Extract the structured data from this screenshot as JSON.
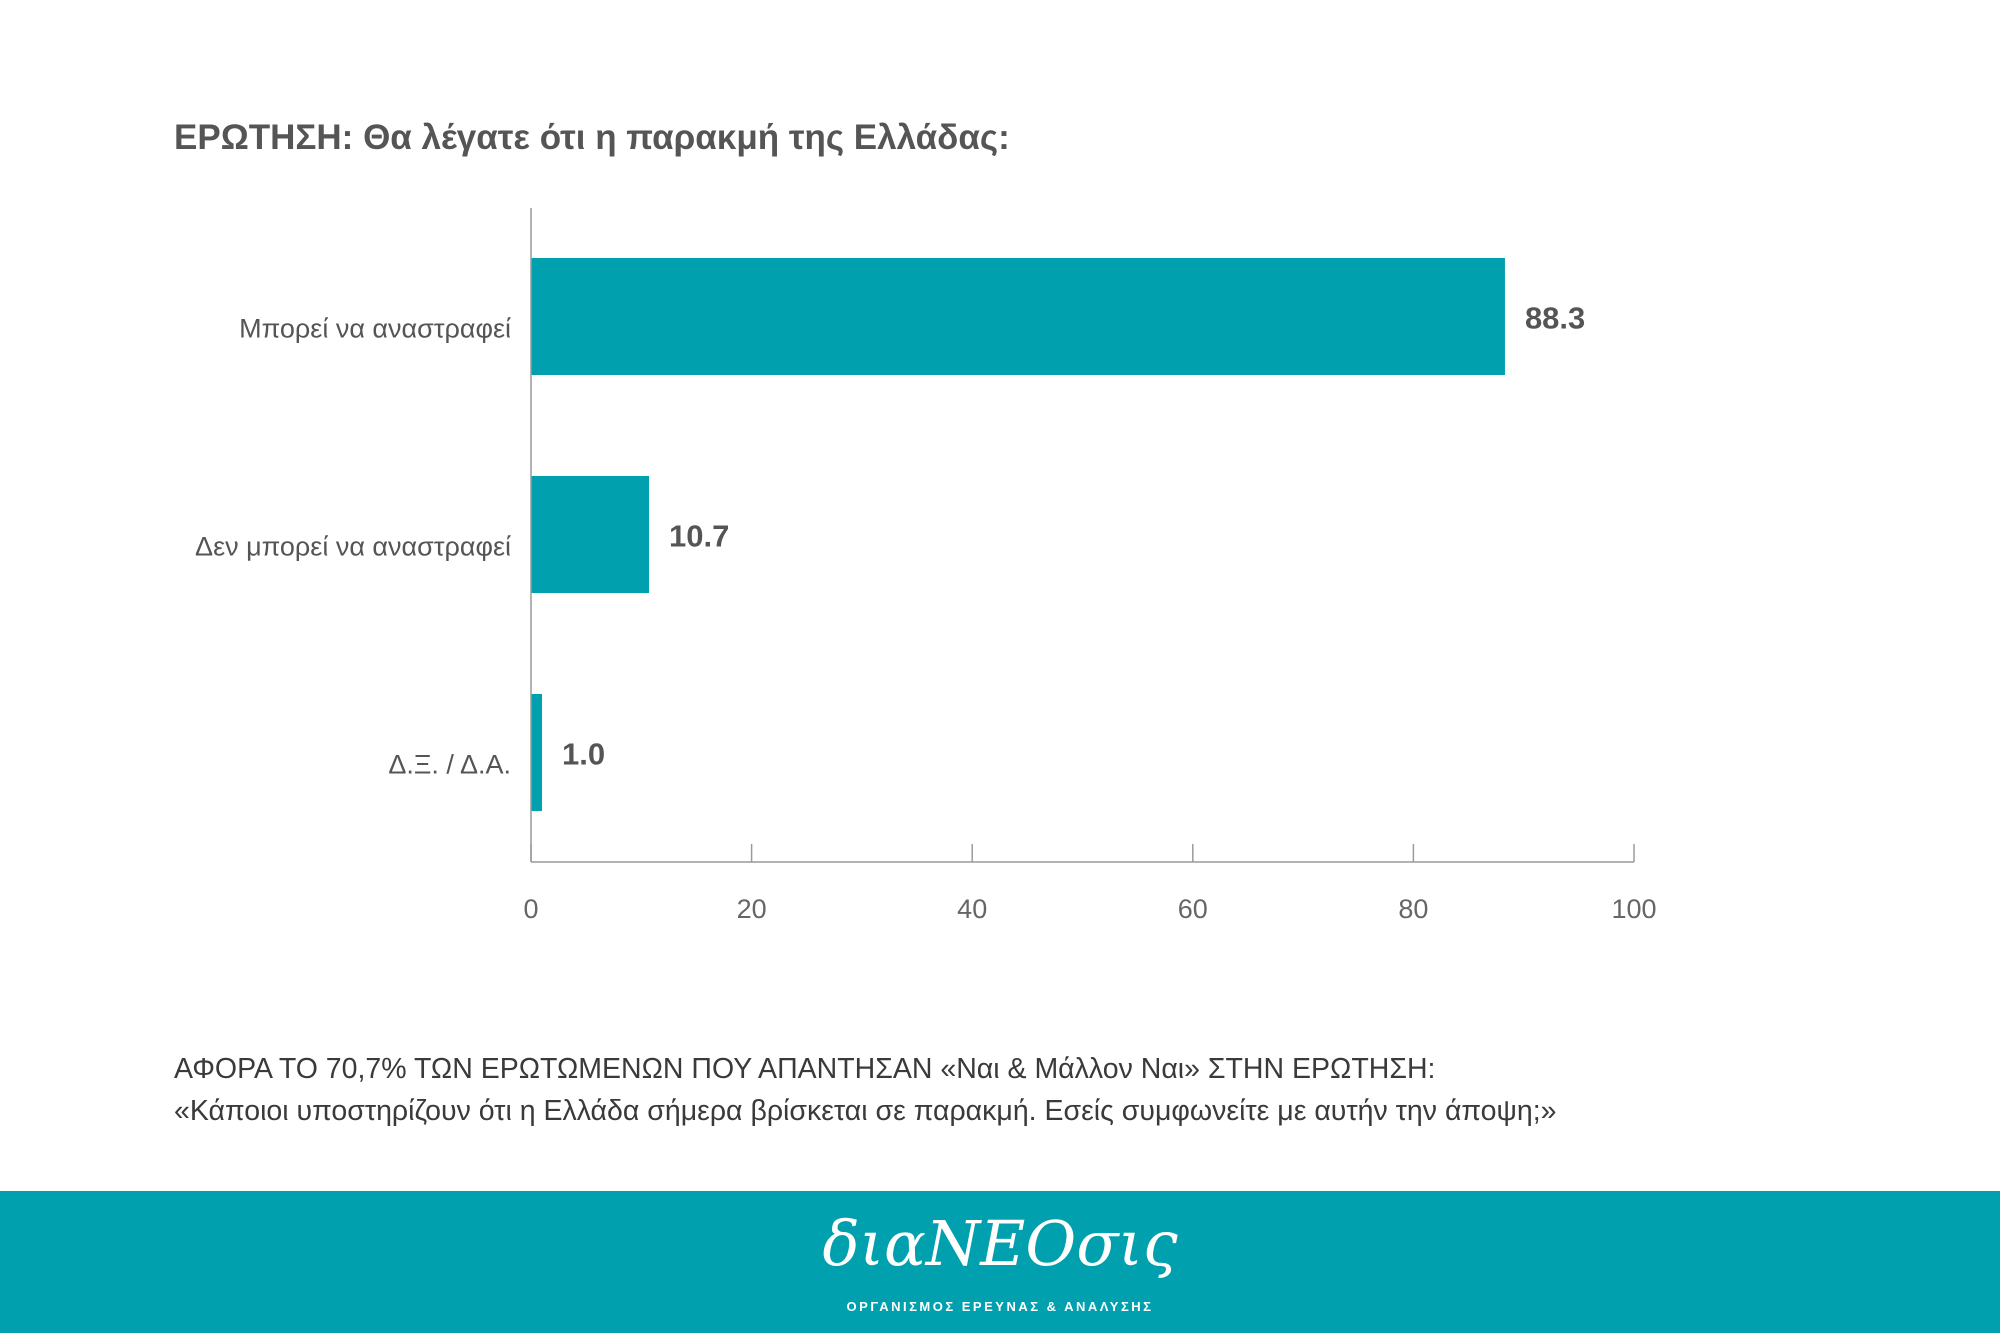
{
  "title": "ΕΡΩΤΗΣΗ: Θα λέγατε ότι η παρακμή της Ελλάδας:",
  "chart_data": {
    "type": "bar",
    "orientation": "horizontal",
    "categories": [
      "Μπορεί να αναστραφεί",
      "Δεν μπορεί να αναστραφεί",
      "Δ.Ξ. / Δ.Α."
    ],
    "values": [
      88.3,
      10.7,
      1.0
    ],
    "value_labels": [
      "88.3",
      "10.7",
      "1.0"
    ],
    "xlim": [
      0,
      100
    ],
    "xticks": [
      0,
      20,
      40,
      60,
      80,
      100
    ],
    "grid": false,
    "bar_color": "#00a0af"
  },
  "note": {
    "line1": "ΑΦΟΡΑ ΤΟ 70,7% ΤΩΝ ΕΡΩΤΩΜΕΝΩΝ ΠΟΥ ΑΠΑΝΤΗΣΑΝ «Ναι & Μάλλον Ναι» ΣΤΗΝ ΕΡΩΤΗΣΗ:",
    "line2": "«Κάποιοι υποστηρίζουν ότι η Ελλάδα σήμερα βρίσκεται σε παρακμή. Εσείς συμφωνείτε με αυτήν την άποψη;»"
  },
  "footer": {
    "logo": "διαΝΕΟσις",
    "tagline": "ΟΡΓΑΝΙΣΜΟΣ ΕΡΕΥΝΑΣ & ΑΝΑΛΥΣΗΣ",
    "color": "#00a0af"
  }
}
